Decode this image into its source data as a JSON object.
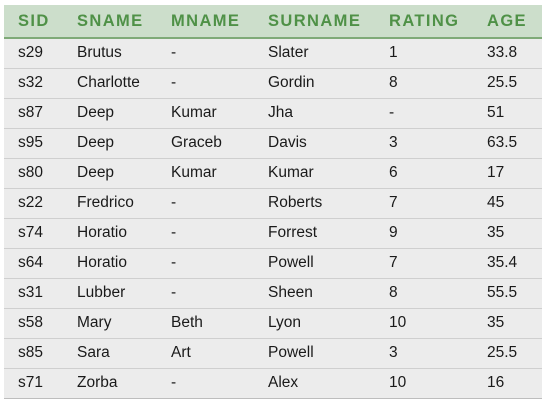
{
  "table": {
    "headers": [
      "SID",
      "SNAME",
      "MNAME",
      "SURNAME",
      "RATING",
      "AGE"
    ],
    "rows": [
      [
        "s29",
        "Brutus",
        "-",
        "Slater",
        "1",
        "33.8"
      ],
      [
        "s32",
        "Charlotte",
        "-",
        "Gordin",
        "8",
        "25.5"
      ],
      [
        "s87",
        "Deep",
        "Kumar",
        "Jha",
        "-",
        "51"
      ],
      [
        "s95",
        "Deep",
        "Graceb",
        "Davis",
        "3",
        "63.5"
      ],
      [
        "s80",
        "Deep",
        "Kumar",
        "Kumar",
        "6",
        "17"
      ],
      [
        "s22",
        "Fredrico",
        "-",
        "Roberts",
        "7",
        "45"
      ],
      [
        "s74",
        "Horatio",
        "-",
        "Forrest",
        "9",
        "35"
      ],
      [
        "s64",
        "Horatio",
        "-",
        "Powell",
        "7",
        "35.4"
      ],
      [
        "s31",
        "Lubber",
        "-",
        "Sheen",
        "8",
        "55.5"
      ],
      [
        "s58",
        "Mary",
        "Beth",
        "Lyon",
        "10",
        "35"
      ],
      [
        "s85",
        "Sara",
        "Art",
        "Powell",
        "3",
        "25.5"
      ],
      [
        "s71",
        "Zorba",
        "-",
        "Alex",
        "10",
        "16"
      ]
    ]
  },
  "colors": {
    "header_background": "#ccdecb",
    "header_text": "#4f9147",
    "row_background": "#ececec"
  }
}
